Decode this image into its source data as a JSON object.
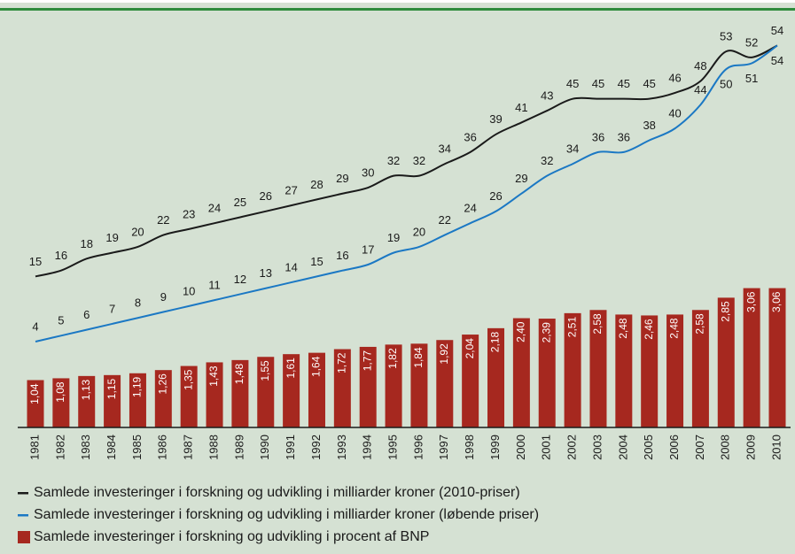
{
  "chart_data": {
    "type": "combo",
    "categories": [
      "1981",
      "1982",
      "1983",
      "1984",
      "1985",
      "1986",
      "1987",
      "1988",
      "1989",
      "1990",
      "1991",
      "1992",
      "1993",
      "1994",
      "1995",
      "1996",
      "1997",
      "1998",
      "1999",
      "2000",
      "2001",
      "2002",
      "2003",
      "2004",
      "2005",
      "2006",
      "2007",
      "2008",
      "2009",
      "2010"
    ],
    "ylim": [
      -10.5,
      58.7
    ],
    "y2lim": [
      0,
      9
    ],
    "series": [
      {
        "name": "Samlede investeringer i forskning og udvikling i milliarder kroner (2010-priser)",
        "type": "line",
        "color": "#1a1a1a",
        "values": [
          15,
          16,
          18,
          19,
          20,
          22,
          23,
          24,
          25,
          26,
          27,
          28,
          29,
          30,
          32,
          32,
          34,
          36,
          39,
          41,
          43,
          45,
          45,
          45,
          45,
          46,
          48,
          53,
          52,
          54
        ]
      },
      {
        "name": "Samlede investeringer i forskning og udvikling i milliarder kroner (løbende priser)",
        "type": "line",
        "color": "#1b78c4",
        "values": [
          4,
          5,
          6,
          7,
          8,
          9,
          10,
          11,
          12,
          13,
          14,
          15,
          16,
          17,
          19,
          20,
          22,
          24,
          26,
          29,
          32,
          34,
          36,
          36,
          38,
          40,
          44,
          50,
          51,
          54
        ]
      },
      {
        "name": "Samlede investeringer i forskning og udvikling i procent af BNP",
        "type": "bar",
        "axis": "y2",
        "color": "#a6281f",
        "values": [
          1.04,
          1.08,
          1.13,
          1.15,
          1.19,
          1.26,
          1.35,
          1.43,
          1.48,
          1.55,
          1.61,
          1.64,
          1.72,
          1.77,
          1.82,
          1.84,
          1.92,
          2.04,
          2.18,
          2.4,
          2.39,
          2.51,
          2.58,
          2.48,
          2.46,
          2.48,
          2.58,
          2.85,
          3.06,
          3.06
        ],
        "value_labels": [
          "1,04",
          "1,08",
          "1,13",
          "1,15",
          "1,19",
          "1,26",
          "1,35",
          "1,43",
          "1,48",
          "1,55",
          "1,61",
          "1,64",
          "1,72",
          "1,77",
          "1,82",
          "1,84",
          "1,92",
          "2,04",
          "2,18",
          "2,40",
          "2,39",
          "2,51",
          "2,58",
          "2,48",
          "2,46",
          "2,48",
          "2,58",
          "2,85",
          "3,06",
          "3,06"
        ]
      }
    ]
  }
}
